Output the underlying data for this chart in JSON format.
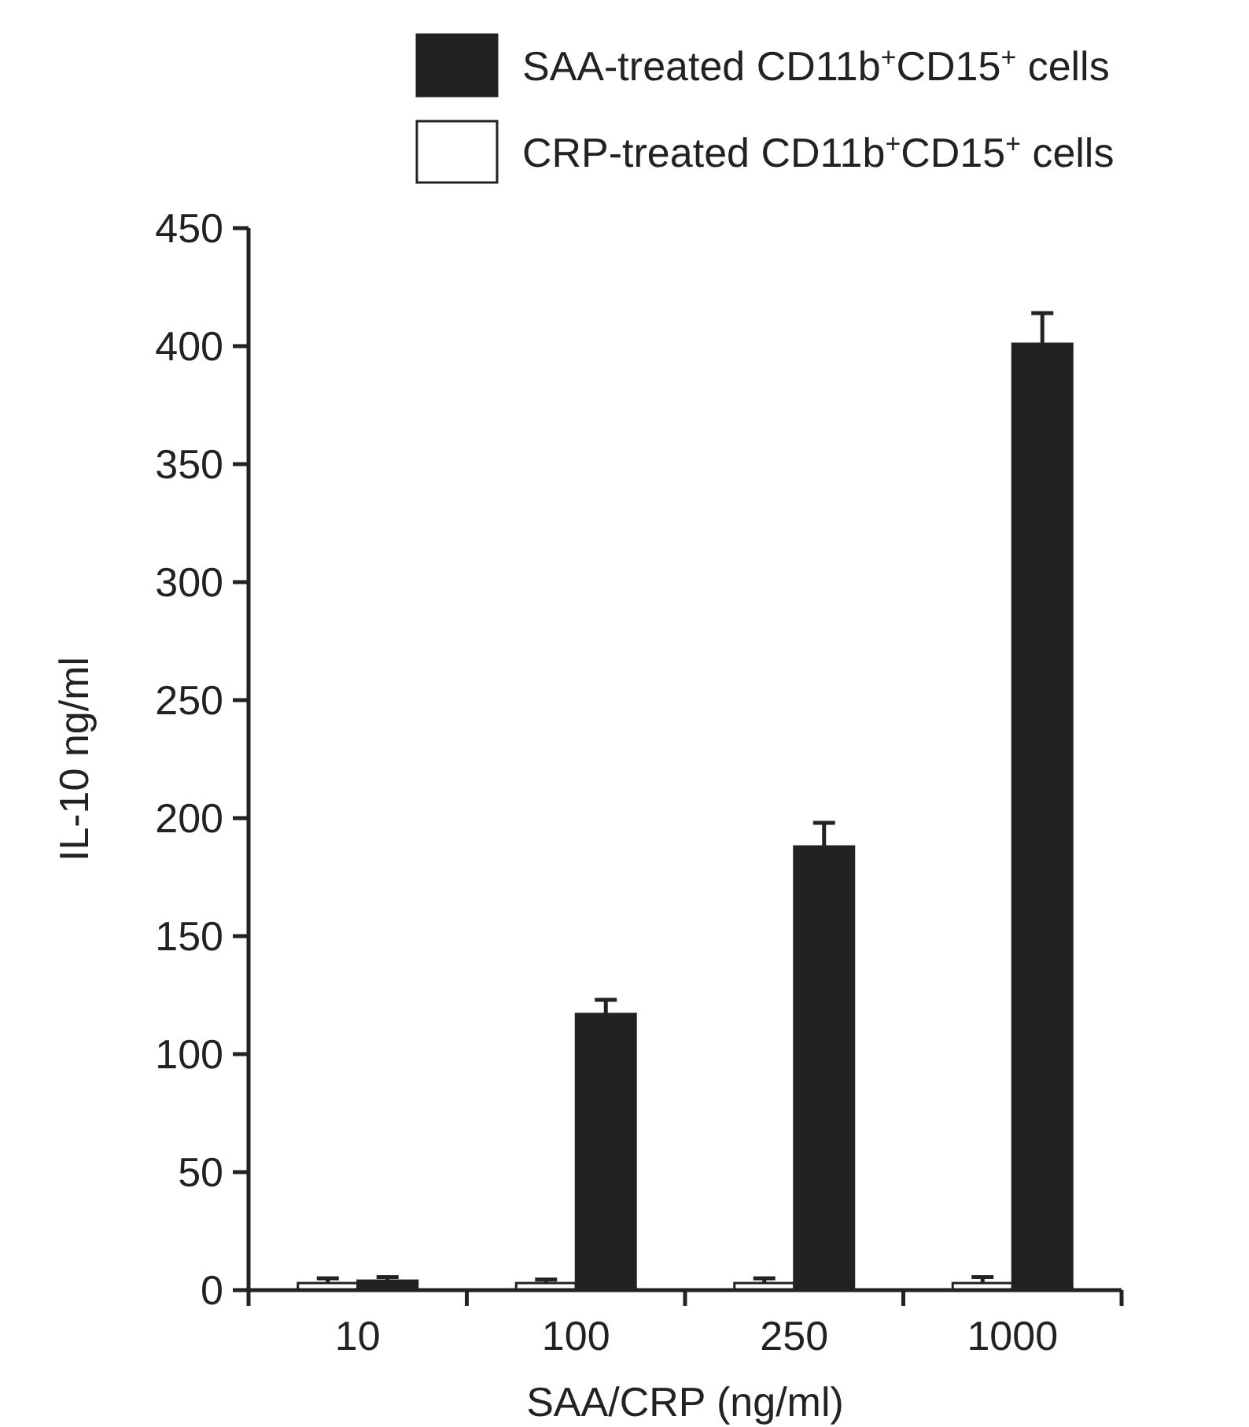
{
  "chart_data": {
    "type": "bar",
    "xlabel": "SAA/CRP (ng/ml)",
    "ylabel": "IL-10 ng/ml",
    "categories": [
      "10",
      "100",
      "250",
      "1000"
    ],
    "series": [
      {
        "name": "CRP-treated CD11b$^{+}$CD15$^{+}$ cells",
        "color": "#ffffff",
        "values": [
          3,
          3,
          3,
          3
        ],
        "errors": [
          2,
          1.5,
          2,
          2.5
        ]
      },
      {
        "name": "SAA-treated CD11b$^{+}$CD15$^{+}$ cells",
        "color": "#222222",
        "values": [
          4,
          117,
          188,
          401
        ],
        "errors": [
          1.5,
          6,
          10,
          13
        ]
      }
    ],
    "ylim": [
      0,
      450
    ],
    "yticks": [
      0,
      50,
      100,
      150,
      200,
      250,
      300,
      350,
      400,
      450
    ],
    "grid": false,
    "legend": "top right"
  }
}
